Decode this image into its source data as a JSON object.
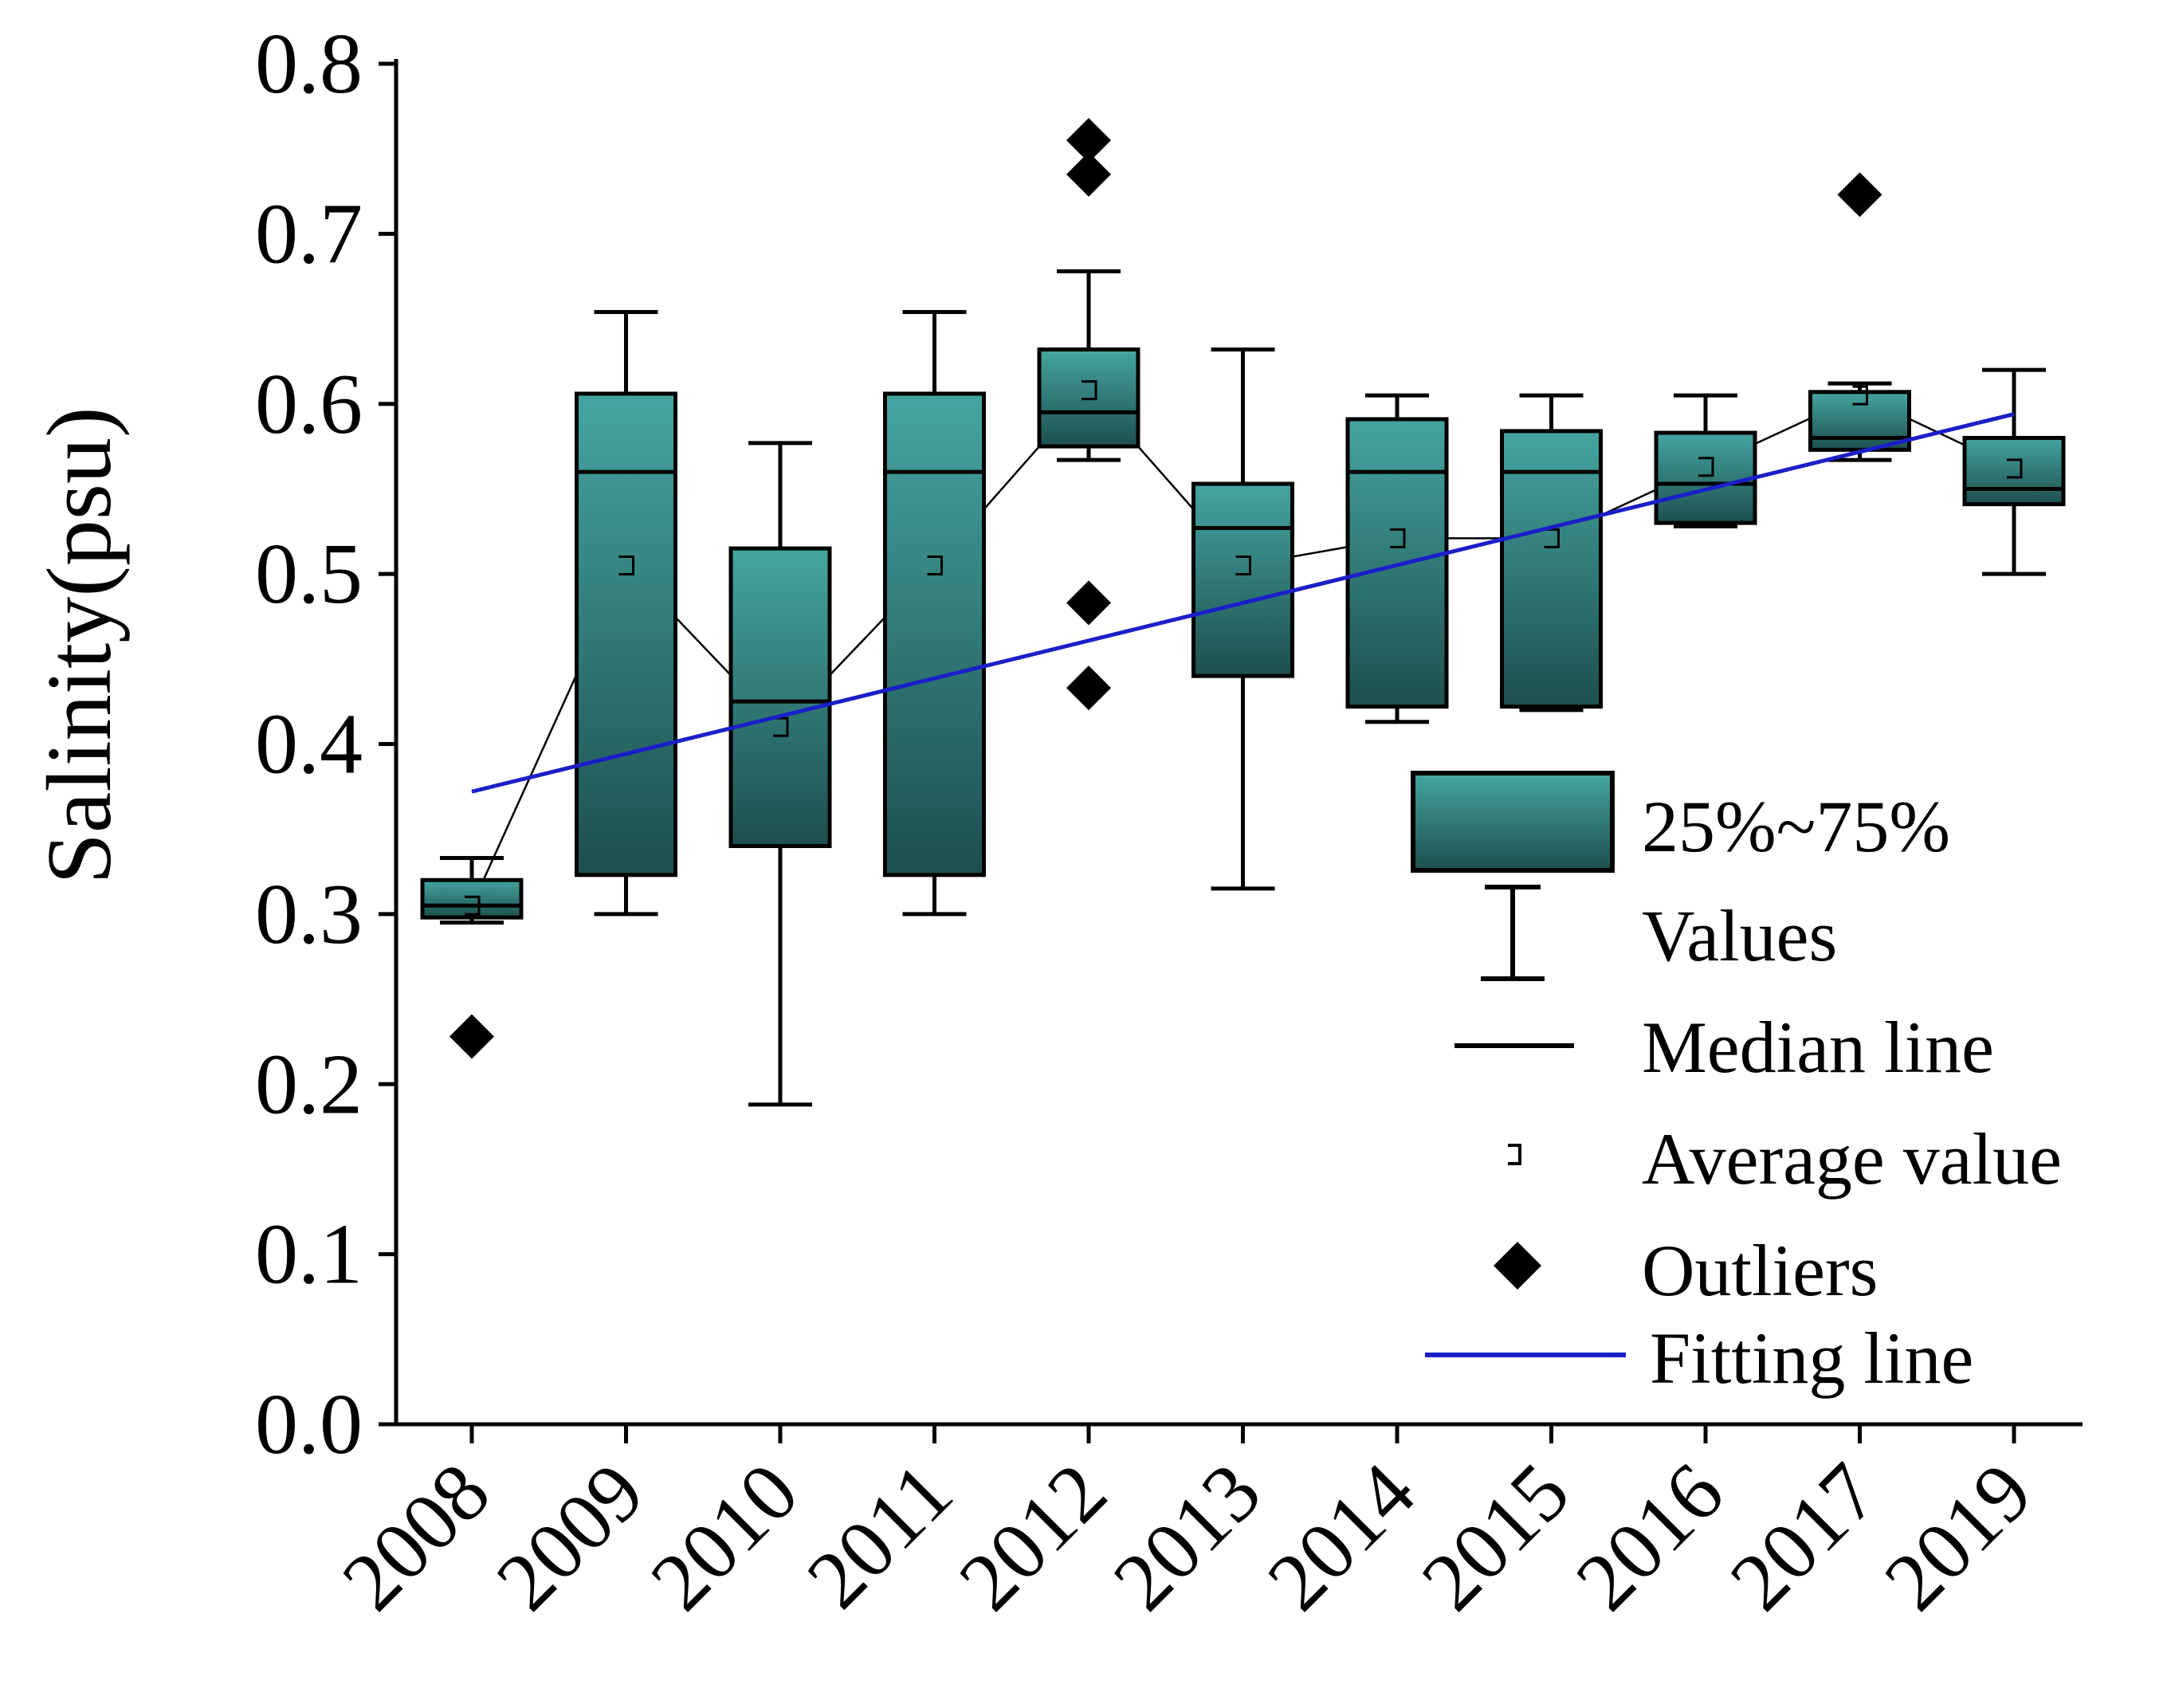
{
  "chart_data": {
    "type": "box",
    "ylabel": "Salinity(psu)",
    "xlabel": "",
    "ylim": [
      0,
      0.8
    ],
    "yticks": [
      "0.0",
      "0.1",
      "0.2",
      "0.3",
      "0.4",
      "0.5",
      "0.6",
      "0.7",
      "0.8"
    ],
    "categories": [
      "2008",
      "2009",
      "2010",
      "2011",
      "2012",
      "2013",
      "2014",
      "2015",
      "2016",
      "2017",
      "2019"
    ],
    "boxes": [
      {
        "year": "2008",
        "whisker_low": 0.295,
        "q1": 0.298,
        "median": 0.305,
        "q3": 0.32,
        "whisker_high": 0.333,
        "mean": 0.305,
        "outliers": [
          0.228
        ]
      },
      {
        "year": "2009",
        "whisker_low": 0.3,
        "q1": 0.323,
        "median": 0.56,
        "q3": 0.606,
        "whisker_high": 0.654,
        "mean": 0.505,
        "outliers": []
      },
      {
        "year": "2010",
        "whisker_low": 0.188,
        "q1": 0.34,
        "median": 0.425,
        "q3": 0.515,
        "whisker_high": 0.577,
        "mean": 0.41,
        "outliers": []
      },
      {
        "year": "2011",
        "whisker_low": 0.3,
        "q1": 0.323,
        "median": 0.56,
        "q3": 0.606,
        "whisker_high": 0.654,
        "mean": 0.505,
        "outliers": []
      },
      {
        "year": "2012",
        "whisker_low": 0.567,
        "q1": 0.575,
        "median": 0.595,
        "q3": 0.632,
        "whisker_high": 0.678,
        "mean": 0.608,
        "outliers": [
          0.755,
          0.735,
          0.483,
          0.433
        ]
      },
      {
        "year": "2013",
        "whisker_low": 0.315,
        "q1": 0.44,
        "median": 0.527,
        "q3": 0.553,
        "whisker_high": 0.632,
        "mean": 0.505,
        "outliers": []
      },
      {
        "year": "2014",
        "whisker_low": 0.413,
        "q1": 0.422,
        "median": 0.56,
        "q3": 0.591,
        "whisker_high": 0.605,
        "mean": 0.521,
        "outliers": []
      },
      {
        "year": "2015",
        "whisker_low": 0.42,
        "q1": 0.422,
        "median": 0.56,
        "q3": 0.584,
        "whisker_high": 0.605,
        "mean": 0.521,
        "outliers": []
      },
      {
        "year": "2016",
        "whisker_low": 0.528,
        "q1": 0.53,
        "median": 0.553,
        "q3": 0.583,
        "whisker_high": 0.605,
        "mean": 0.563,
        "outliers": []
      },
      {
        "year": "2017",
        "whisker_low": 0.567,
        "q1": 0.573,
        "median": 0.58,
        "q3": 0.607,
        "whisker_high": 0.612,
        "mean": 0.605,
        "outliers": [
          0.723
        ]
      },
      {
        "year": "2019",
        "whisker_low": 0.5,
        "q1": 0.541,
        "median": 0.55,
        "q3": 0.58,
        "whisker_high": 0.62,
        "mean": 0.562,
        "outliers": []
      }
    ],
    "fitting_line": {
      "from": {
        "year": "2008",
        "value": 0.372
      },
      "to": {
        "year": "2019",
        "value": 0.594
      }
    },
    "legend": [
      {
        "key": "box",
        "label": "25%~75%"
      },
      {
        "key": "whisker",
        "label": "Values"
      },
      {
        "key": "median",
        "label": "Median line"
      },
      {
        "key": "mean",
        "label": "Average value"
      },
      {
        "key": "outlier",
        "label": "Outliers"
      },
      {
        "key": "fit",
        "label": "Fitting line"
      }
    ],
    "colors": {
      "box_light": "#45a5a0",
      "box_dark": "#1d4f4e",
      "fit_line": "#1a1fc8",
      "ink": "#000000"
    }
  }
}
